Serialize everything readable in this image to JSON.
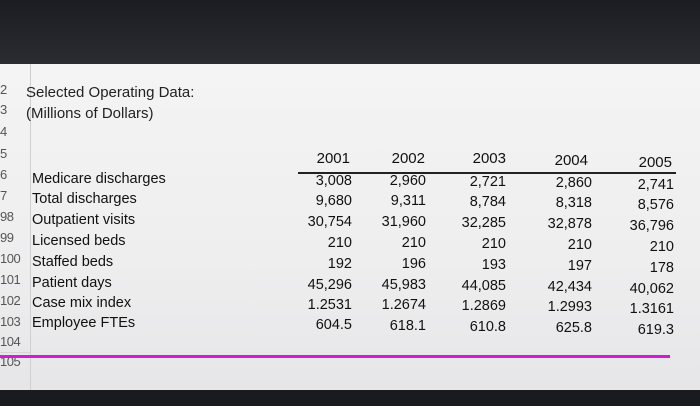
{
  "sheet": {
    "title_line1": "Selected Operating Data:",
    "title_line2": "(Millions of Dollars)",
    "row_numbers": [
      "2",
      "3",
      "4",
      "5",
      "6",
      "7",
      "98",
      "99",
      "100",
      "101",
      "102",
      "103",
      "104",
      "105"
    ],
    "years": [
      "2001",
      "2002",
      "2003",
      "2004",
      "2005"
    ],
    "rows": [
      {
        "label": "Medicare discharges",
        "values": [
          "3,008",
          "2,960",
          "2,721",
          "2,860",
          "2,741"
        ]
      },
      {
        "label": "Total discharges",
        "values": [
          "9,680",
          "9,311",
          "8,784",
          "8,318",
          "8,576"
        ]
      },
      {
        "label": "Outpatient visits",
        "values": [
          "30,754",
          "31,960",
          "32,285",
          "32,878",
          "36,796"
        ]
      },
      {
        "label": "Licensed beds",
        "values": [
          "210",
          "210",
          "210",
          "210",
          "210"
        ]
      },
      {
        "label": "Staffed beds",
        "values": [
          "192",
          "196",
          "193",
          "197",
          "178"
        ]
      },
      {
        "label": "Patient days",
        "values": [
          "45,296",
          "45,983",
          "44,085",
          "42,434",
          "40,062"
        ]
      },
      {
        "label": "Case mix index",
        "values": [
          "1.2531",
          "1.2674",
          "1.2869",
          "1.2993",
          "1.3161"
        ]
      },
      {
        "label": "Employee FTEs",
        "values": [
          "604.5",
          "618.1",
          "610.8",
          "625.8",
          "619.3"
        ]
      }
    ]
  },
  "colors": {
    "highlight_line": "#d51bd0"
  }
}
